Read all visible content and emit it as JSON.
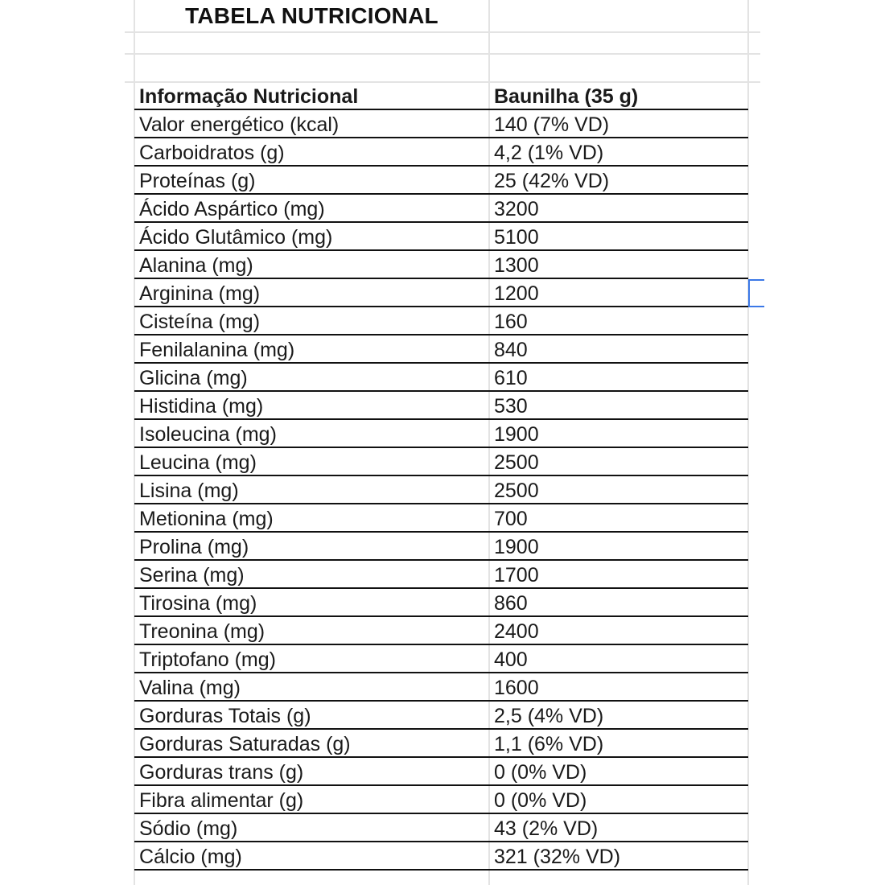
{
  "title": "TABELA NUTRICIONAL",
  "table": {
    "headers": [
      "Informação Nutricional",
      "Baunilha (35 g)"
    ],
    "rows": [
      [
        "Valor energético (kcal)",
        "140 (7% VD)"
      ],
      [
        "Carboidratos (g)",
        "4,2 (1% VD)"
      ],
      [
        "Proteínas (g)",
        "25 (42% VD)"
      ],
      [
        "Ácido Aspártico (mg)",
        "3200"
      ],
      [
        "Ácido Glutâmico (mg)",
        "5100"
      ],
      [
        "Alanina (mg)",
        "1300"
      ],
      [
        "Arginina (mg)",
        "1200"
      ],
      [
        "Cisteína (mg)",
        "160"
      ],
      [
        "Fenilalanina (mg)",
        "840"
      ],
      [
        "Glicina (mg)",
        "610"
      ],
      [
        "Histidina (mg)",
        "530"
      ],
      [
        "Isoleucina (mg)",
        "1900"
      ],
      [
        "Leucina (mg)",
        "2500"
      ],
      [
        "Lisina (mg)",
        "2500"
      ],
      [
        "Metionina (mg)",
        "700"
      ],
      [
        "Prolina (mg)",
        "1900"
      ],
      [
        "Serina (mg)",
        "1700"
      ],
      [
        "Tirosina (mg)",
        "860"
      ],
      [
        "Treonina (mg)",
        "2400"
      ],
      [
        "Triptofano (mg)",
        "400"
      ],
      [
        "Valina (mg)",
        "1600"
      ],
      [
        "Gorduras Totais (g)",
        "2,5 (4% VD)"
      ],
      [
        "Gorduras Saturadas (g)",
        "1,1 (6% VD)"
      ],
      [
        "Gorduras trans (g)",
        "0 (0% VD)"
      ],
      [
        "Fibra alimentar (g)",
        "0 (0% VD)"
      ],
      [
        "Sódio (mg)",
        "43 (2% VD)"
      ],
      [
        "Cálcio (mg)",
        "321 (32% VD)"
      ]
    ]
  },
  "colors": {
    "selection": "#3b78e7",
    "gridline": "#e3e3e3",
    "border": "#111111"
  }
}
